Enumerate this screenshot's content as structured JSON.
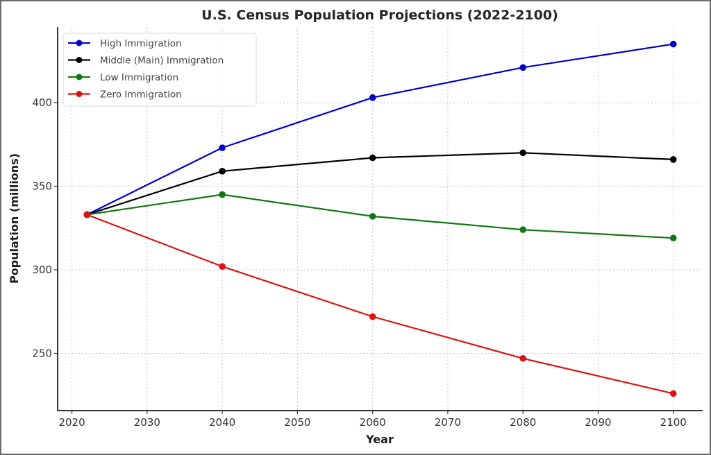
{
  "chart_data": {
    "type": "line",
    "title": "U.S. Census Population Projections (2022-2100)",
    "xlabel": "Year",
    "ylabel": "Population (millions)",
    "x": [
      2022,
      2040,
      2060,
      2080,
      2100
    ],
    "xlim": [
      2018.1,
      2103.9
    ],
    "ylim": [
      215.8,
      445.2
    ],
    "xticks": [
      2020,
      2030,
      2040,
      2050,
      2060,
      2070,
      2080,
      2090,
      2100
    ],
    "yticks": [
      250,
      300,
      350,
      400
    ],
    "grid": true,
    "legend_position": "top-left",
    "series": [
      {
        "name": "High Immigration",
        "color": "#0000cc",
        "values": [
          333,
          373,
          403,
          421,
          435
        ]
      },
      {
        "name": "Middle (Main) Immigration",
        "color": "#000000",
        "values": [
          333,
          359,
          367,
          370,
          366
        ]
      },
      {
        "name": "Low Immigration",
        "color": "#117711",
        "values": [
          333,
          345,
          332,
          324,
          319
        ]
      },
      {
        "name": "Zero Immigration",
        "color": "#dd1111",
        "values": [
          333,
          302,
          272,
          247,
          226
        ]
      }
    ]
  }
}
